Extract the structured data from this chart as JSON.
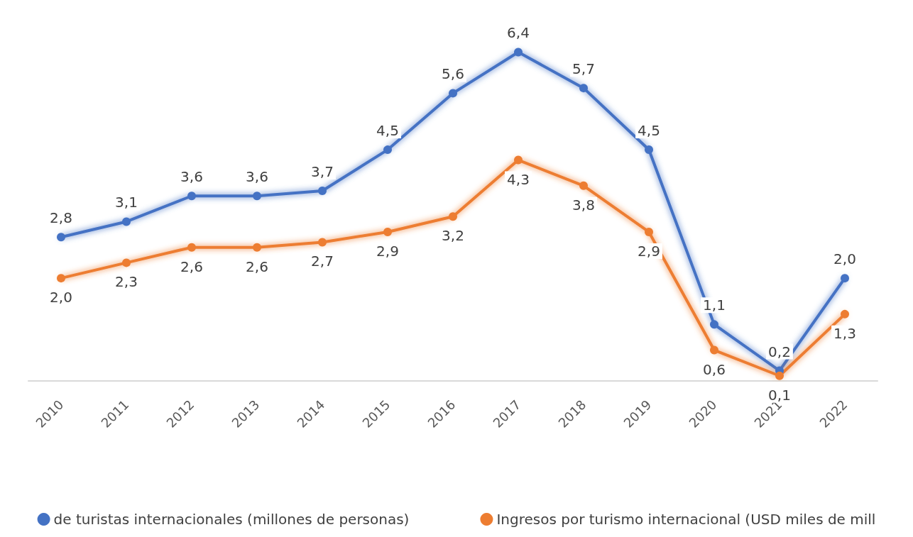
{
  "chart_data": {
    "type": "line",
    "categories": [
      "2010",
      "2011",
      "2012",
      "2013",
      "2014",
      "2015",
      "2016",
      "2017",
      "2018",
      "2019",
      "2020",
      "2021",
      "2022"
    ],
    "series": [
      {
        "name": "de turistas internacionales (millones de personas)",
        "color": "#4472c4",
        "values": [
          2.8,
          3.1,
          3.6,
          3.6,
          3.7,
          4.5,
          5.6,
          6.4,
          5.7,
          4.5,
          1.1,
          0.2,
          2.0
        ],
        "value_labels": [
          "2,8",
          "3,1",
          "3,6",
          "3,6",
          "3,7",
          "4,5",
          "5,6",
          "6,4",
          "5,7",
          "4,5",
          "1,1",
          "0,2",
          "2,0"
        ]
      },
      {
        "name": "Ingresos por turismo internacional (USD miles de mill",
        "color": "#ed7d31",
        "values": [
          2.0,
          2.3,
          2.6,
          2.6,
          2.7,
          2.9,
          3.2,
          4.3,
          3.8,
          2.9,
          0.6,
          0.1,
          1.3
        ],
        "value_labels": [
          "2,0",
          "2,3",
          "2,6",
          "2,6",
          "2,7",
          "2,9",
          "3,2",
          "4,3",
          "3,8",
          "2,9",
          "0,6",
          "0,1",
          "1,3"
        ]
      }
    ],
    "legend": "bottom",
    "marker": "circle",
    "grid": false
  }
}
